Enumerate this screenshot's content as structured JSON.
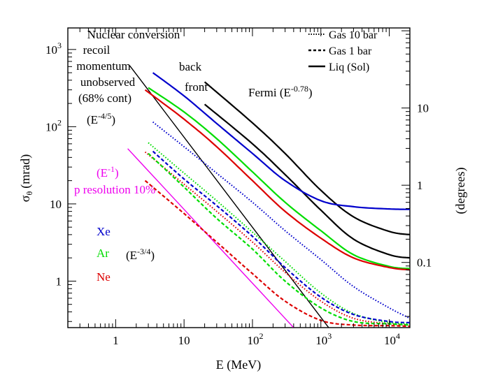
{
  "chart_data": {
    "type": "line",
    "xlabel": "E (MeV)",
    "ylabel_main": "σ",
    "ylabel_sub": "θ",
    "ylabel_unit": "(mrad)",
    "y2label": "(degrees)",
    "xscale": "log",
    "yscale": "log",
    "xlim": [
      0.2,
      20000
    ],
    "ylim": [
      0.25,
      1900
    ],
    "x_ticks": [
      {
        "v": 1,
        "text": "1"
      },
      {
        "v": 10,
        "text": "10"
      },
      {
        "v": 100,
        "base": "10",
        "exp": "2"
      },
      {
        "v": 1000,
        "base": "10",
        "exp": "3"
      },
      {
        "v": 10000,
        "base": "10",
        "exp": "4"
      }
    ],
    "y_ticks": [
      {
        "v": 1,
        "text": "1"
      },
      {
        "v": 10,
        "text": "10"
      },
      {
        "v": 100,
        "base": "10",
        "exp": "2"
      },
      {
        "v": 1000,
        "base": "10",
        "exp": "3"
      }
    ],
    "y2_ticks": [
      {
        "deg": 0.1,
        "text": "0.1"
      },
      {
        "deg": 1,
        "text": "1"
      },
      {
        "deg": 10,
        "text": "10"
      }
    ],
    "colors": {
      "Xe": "#0000cc",
      "Ar": "#00dd00",
      "Ne": "#dd0000",
      "magenta": "#ee00ee",
      "black": "#000000"
    },
    "legend": [
      {
        "label": "Gas 10 bar",
        "style": "dotted"
      },
      {
        "label": "Gas 1 bar",
        "style": "dashed"
      },
      {
        "label": "Liq (Sol)",
        "style": "solid"
      }
    ],
    "element_labels": [
      {
        "text": "Xe",
        "color": "#0000cc"
      },
      {
        "text": "Ar",
        "color": "#00dd00"
      },
      {
        "text": "Ne",
        "color": "#dd0000"
      }
    ],
    "annotations": {
      "nuclear": [
        "Nuclear conversion",
        "recoil",
        "momentum",
        "unobserved",
        "(68% cont)"
      ],
      "nuclear_scaling": {
        "pre": "(E",
        "exp": "-4/5",
        "post": ")"
      },
      "p_res_scaling": {
        "pre": "(E",
        "exp": "-1",
        "post": ")"
      },
      "p_res": "p resolution 10%",
      "ar_scaling": {
        "pre": "(E",
        "exp": "-3/4",
        "post": ")"
      },
      "back": "back",
      "front": "front",
      "fermi": {
        "pre": "Fermi (E",
        "exp": "-0.78",
        "post": ")"
      }
    },
    "series": [
      {
        "label": "Nuclear recoil",
        "color": "#000000",
        "style": "solid",
        "width": 1.4,
        "points": [
          [
            1.6,
            620
          ],
          [
            1300,
            0.25
          ]
        ]
      },
      {
        "label": "p resolution 10%",
        "color": "#ee00ee",
        "style": "solid",
        "width": 1.4,
        "points": [
          [
            1.5,
            52
          ],
          [
            400,
            0.25
          ]
        ]
      },
      {
        "label": "Fermi back",
        "color": "#000000",
        "style": "solid",
        "width": 2.2,
        "points": [
          [
            20,
            380
          ],
          [
            100,
            112
          ],
          [
            300,
            45
          ],
          [
            1000,
            15
          ],
          [
            3000,
            6.8
          ],
          [
            10000,
            4.4
          ],
          [
            20000,
            4.0
          ]
        ]
      },
      {
        "label": "Fermi front",
        "color": "#000000",
        "style": "solid",
        "width": 2.2,
        "points": [
          [
            20,
            195
          ],
          [
            100,
            60
          ],
          [
            300,
            24
          ],
          [
            1000,
            8.3
          ],
          [
            3000,
            3.5
          ],
          [
            10000,
            2.2
          ],
          [
            20000,
            2.0
          ]
        ]
      },
      {
        "label": "Xe Liq",
        "color": "#0000cc",
        "style": "solid",
        "width": 2.2,
        "points": [
          [
            3.5,
            500
          ],
          [
            10,
            250
          ],
          [
            30,
            110
          ],
          [
            100,
            45
          ],
          [
            300,
            20
          ],
          [
            1000,
            11
          ],
          [
            3000,
            9.2
          ],
          [
            10000,
            8.6
          ],
          [
            20000,
            8.5
          ]
        ]
      },
      {
        "label": "Ar Liq",
        "color": "#00dd00",
        "style": "solid",
        "width": 2.2,
        "points": [
          [
            3,
            320
          ],
          [
            10,
            155
          ],
          [
            30,
            70
          ],
          [
            100,
            26
          ],
          [
            300,
            10.5
          ],
          [
            1000,
            4.5
          ],
          [
            3000,
            2.2
          ],
          [
            10000,
            1.55
          ],
          [
            20000,
            1.45
          ]
        ]
      },
      {
        "label": "Ne Liq",
        "color": "#dd0000",
        "style": "solid",
        "width": 2.2,
        "points": [
          [
            2.7,
            300
          ],
          [
            10,
            125
          ],
          [
            30,
            55
          ],
          [
            100,
            20
          ],
          [
            300,
            8
          ],
          [
            1000,
            3.6
          ],
          [
            3000,
            2.0
          ],
          [
            10000,
            1.5
          ],
          [
            20000,
            1.4
          ]
        ]
      },
      {
        "label": "Xe Gas 10 bar",
        "color": "#0000cc",
        "style": "dotted",
        "width": 2.0,
        "points": [
          [
            3.5,
            115
          ],
          [
            10,
            55
          ],
          [
            30,
            25
          ],
          [
            100,
            10.5
          ],
          [
            300,
            4.5
          ],
          [
            1000,
            1.9
          ],
          [
            3000,
            0.85
          ],
          [
            10000,
            0.45
          ],
          [
            20000,
            0.33
          ]
        ]
      },
      {
        "label": "Ar Gas 10 bar",
        "color": "#00dd00",
        "style": "dotted",
        "width": 2.0,
        "points": [
          [
            3,
            62
          ],
          [
            10,
            25
          ],
          [
            30,
            11
          ],
          [
            100,
            4.3
          ],
          [
            300,
            1.8
          ],
          [
            1000,
            0.7
          ],
          [
            3000,
            0.38
          ],
          [
            10000,
            0.29
          ],
          [
            20000,
            0.28
          ]
        ]
      },
      {
        "label": "Ne Gas 10 bar",
        "color": "#dd0000",
        "style": "dotted",
        "width": 2.0,
        "points": [
          [
            2.7,
            47
          ],
          [
            10,
            18
          ],
          [
            30,
            8
          ],
          [
            100,
            3.2
          ],
          [
            300,
            1.3
          ],
          [
            1000,
            0.55
          ],
          [
            3000,
            0.33
          ],
          [
            10000,
            0.28
          ],
          [
            20000,
            0.27
          ]
        ]
      },
      {
        "label": "Xe Gas 1 bar",
        "color": "#0000cc",
        "style": "dashed",
        "width": 2.2,
        "points": [
          [
            3.5,
            48
          ],
          [
            10,
            21
          ],
          [
            30,
            9.5
          ],
          [
            100,
            3.8
          ],
          [
            300,
            1.5
          ],
          [
            1000,
            0.62
          ],
          [
            3000,
            0.37
          ],
          [
            10000,
            0.3
          ],
          [
            20000,
            0.29
          ]
        ]
      },
      {
        "label": "Ar Gas 1 bar",
        "color": "#00dd00",
        "style": "dashed",
        "width": 2.2,
        "points": [
          [
            3,
            45
          ],
          [
            10,
            16.5
          ],
          [
            30,
            6.5
          ],
          [
            100,
            2.6
          ],
          [
            300,
            1.0
          ],
          [
            1000,
            0.45
          ],
          [
            3000,
            0.3
          ],
          [
            10000,
            0.28
          ],
          [
            20000,
            0.27
          ]
        ]
      },
      {
        "label": "Ne Gas 1 bar",
        "color": "#dd0000",
        "style": "dashed",
        "width": 2.2,
        "points": [
          [
            2.7,
            20
          ],
          [
            10,
            7.5
          ],
          [
            30,
            3.2
          ],
          [
            100,
            1.25
          ],
          [
            300,
            0.55
          ],
          [
            1000,
            0.31
          ],
          [
            3000,
            0.27
          ],
          [
            10000,
            0.265
          ],
          [
            20000,
            0.26
          ]
        ]
      }
    ]
  }
}
